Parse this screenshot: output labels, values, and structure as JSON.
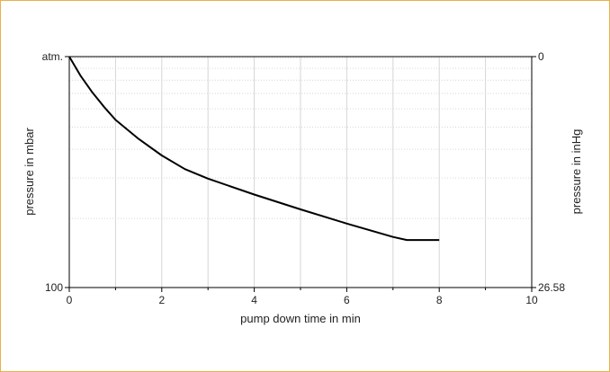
{
  "chart_data": {
    "type": "line",
    "xlabel": "pump down time in min",
    "ylabel_left": "pressure in mbar",
    "ylabel_right": "pressure in inHg",
    "xlim": [
      0,
      10
    ],
    "x_ticks": [
      "0",
      "2",
      "4",
      "6",
      "8",
      "10"
    ],
    "y_left_tick_labels": [
      "atm.",
      "100"
    ],
    "y_right_tick_labels": [
      "0",
      "26.58"
    ],
    "ylim_mbar": [
      1013,
      100
    ],
    "y_scale": "log",
    "grid": true,
    "series": [
      {
        "color": "#000000",
        "x": [
          0,
          0.25,
          0.5,
          0.75,
          1.0,
          1.5,
          2.0,
          2.5,
          3.0,
          4.0,
          5.0,
          6.0,
          7.0,
          7.3,
          8.0
        ],
        "y": [
          1013,
          833,
          707,
          613,
          537,
          444,
          376,
          328,
          298,
          254,
          219,
          190,
          166,
          161,
          161
        ]
      }
    ]
  }
}
